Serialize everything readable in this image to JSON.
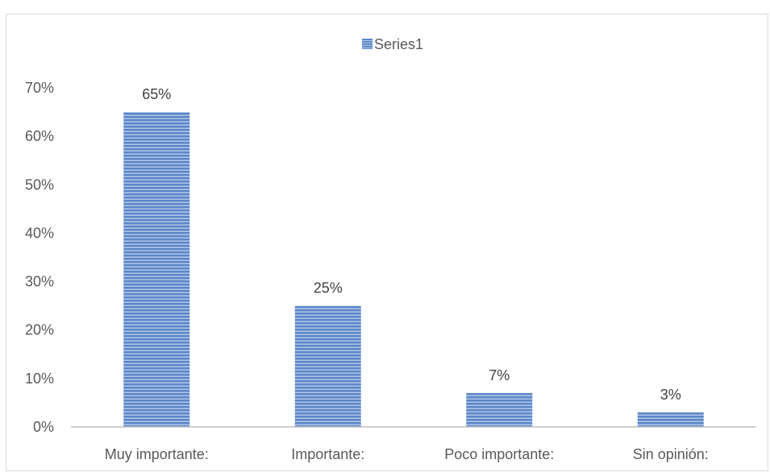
{
  "chart_data": {
    "type": "bar",
    "categories": [
      "Muy importante:",
      "Importante:",
      "Poco importante:",
      "Sin opinión:"
    ],
    "series": [
      {
        "name": "Series1",
        "values": [
          65,
          25,
          7,
          3
        ],
        "labels": [
          "65%",
          "25%",
          "7%",
          "3%"
        ]
      }
    ],
    "y_ticks": [
      "0%",
      "10%",
      "20%",
      "30%",
      "40%",
      "50%",
      "60%",
      "70%"
    ],
    "ylim": [
      0,
      70
    ],
    "grid": false,
    "legend_position": "top-center",
    "colors": {
      "bar_fill": "#5b87c9",
      "bar_stripe": "#ffffff",
      "axis": "#bfbfbf"
    }
  }
}
